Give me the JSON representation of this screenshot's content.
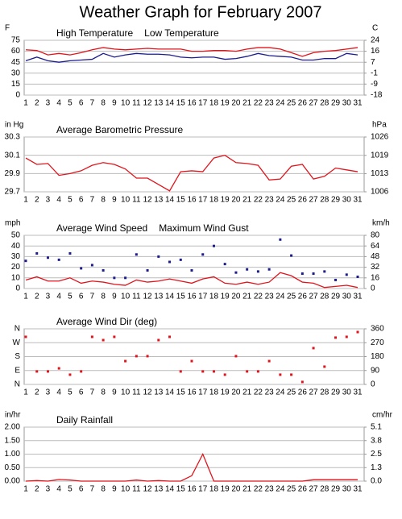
{
  "title": "Weather Graph for February 2007",
  "chart_data": [
    {
      "type": "line",
      "ylabel": "F",
      "y2label": "C",
      "x": [
        1,
        2,
        3,
        4,
        5,
        6,
        7,
        8,
        9,
        10,
        11,
        12,
        13,
        14,
        15,
        16,
        17,
        18,
        19,
        20,
        21,
        22,
        23,
        24,
        25,
        26,
        27,
        28,
        29,
        30,
        31
      ],
      "series": [
        {
          "name": "High Temperature",
          "color": "#e0141c",
          "mode": "line",
          "values": [
            62,
            61,
            55,
            57,
            55,
            58,
            62,
            65,
            63,
            62,
            63,
            64,
            63,
            63,
            63,
            60,
            60,
            61,
            61,
            60,
            63,
            65,
            65,
            63,
            58,
            53,
            58,
            60,
            61,
            63,
            65
          ]
        },
        {
          "name": "Low Temperature",
          "color": "#1c1c8c",
          "mode": "line",
          "values": [
            47,
            52,
            47,
            45,
            47,
            48,
            49,
            57,
            52,
            55,
            57,
            56,
            56,
            55,
            52,
            51,
            52,
            52,
            49,
            50,
            53,
            57,
            54,
            53,
            52,
            48,
            48,
            50,
            50,
            57,
            55
          ]
        }
      ],
      "ylim": [
        0,
        75
      ],
      "yticks": [
        0,
        15,
        30,
        45,
        60,
        75
      ],
      "y2lim": [
        -17.8,
        23.9
      ],
      "y2ticks": [
        {
          "value": -17.8,
          "label": "-18"
        },
        {
          "value": -9.4,
          "label": "-9"
        },
        {
          "value": -1.1,
          "label": "-1"
        },
        {
          "value": 7.2,
          "label": "7"
        },
        {
          "value": 15.6,
          "label": "16"
        },
        {
          "value": 23.9,
          "label": "24"
        }
      ],
      "grid": true
    },
    {
      "type": "line",
      "ylabel": "in Hg",
      "y2label": "hPa",
      "x": [
        1,
        2,
        3,
        4,
        5,
        6,
        7,
        8,
        9,
        10,
        11,
        12,
        13,
        14,
        15,
        16,
        17,
        18,
        19,
        20,
        21,
        22,
        23,
        24,
        25,
        26,
        27,
        28,
        29,
        30,
        31
      ],
      "series": [
        {
          "name": "Average Barometric Pressure",
          "color": "#e0141c",
          "mode": "line",
          "values": [
            30.07,
            30.0,
            30.01,
            29.88,
            29.9,
            29.93,
            29.99,
            30.02,
            30.0,
            29.95,
            29.85,
            29.85,
            29.78,
            29.71,
            29.92,
            29.93,
            29.92,
            30.07,
            30.1,
            30.02,
            30.01,
            29.99,
            29.83,
            29.84,
            29.98,
            30.0,
            29.84,
            29.87,
            29.96,
            29.94,
            29.92
          ]
        }
      ],
      "ylim": [
        29.7,
        30.3
      ],
      "yticks": [
        29.7,
        29.9,
        30.1,
        30.3
      ],
      "y2lim": [
        1005.8,
        1026.1
      ],
      "y2ticks": [
        {
          "value": 1005.8,
          "label": "1006"
        },
        {
          "value": 1012.5,
          "label": "1013"
        },
        {
          "value": 1019.3,
          "label": "1019"
        },
        {
          "value": 1026.1,
          "label": "1026"
        }
      ],
      "grid": true
    },
    {
      "type": "line",
      "ylabel": "mph",
      "y2label": "km/h",
      "x": [
        1,
        2,
        3,
        4,
        5,
        6,
        7,
        8,
        9,
        10,
        11,
        12,
        13,
        14,
        15,
        16,
        17,
        18,
        19,
        20,
        21,
        22,
        23,
        24,
        25,
        26,
        27,
        28,
        29,
        30,
        31
      ],
      "series": [
        {
          "name": "Average Wind Speed",
          "color": "#e0141c",
          "mode": "line",
          "values": [
            8,
            11,
            7,
            7,
            10,
            5,
            7,
            6,
            4,
            3,
            8,
            6,
            7,
            9,
            7,
            5,
            9,
            11,
            5,
            4,
            6,
            4,
            6,
            15,
            12,
            6,
            5,
            1,
            2,
            3,
            1
          ]
        },
        {
          "name": "Maximum Wind Gust",
          "color": "#1c1c8c",
          "mode": "markers",
          "values": [
            26,
            33,
            29,
            27,
            33,
            19,
            22,
            17,
            10,
            10,
            32,
            17,
            30,
            25,
            27,
            17,
            32,
            40,
            23,
            15,
            18,
            16,
            18,
            46,
            31,
            14,
            14,
            16,
            8,
            13,
            11
          ]
        }
      ],
      "ylim": [
        0,
        50
      ],
      "yticks": [
        0,
        10,
        20,
        30,
        40,
        50
      ],
      "y2lim": [
        0,
        80.5
      ],
      "y2ticks": [
        {
          "value": 0,
          "label": "0"
        },
        {
          "value": 16.1,
          "label": "16"
        },
        {
          "value": 32.2,
          "label": "32"
        },
        {
          "value": 48.3,
          "label": "48"
        },
        {
          "value": 64.4,
          "label": "64"
        },
        {
          "value": 80.5,
          "label": "80"
        }
      ],
      "grid": true
    },
    {
      "type": "scatter",
      "x": [
        1,
        2,
        3,
        4,
        5,
        6,
        7,
        8,
        9,
        10,
        11,
        12,
        13,
        14,
        15,
        16,
        17,
        18,
        19,
        20,
        21,
        22,
        23,
        24,
        25,
        26,
        27,
        28,
        29,
        30,
        31
      ],
      "series": [
        {
          "name": "Average Wind Dir (deg)",
          "color": "#e0141c",
          "mode": "markers",
          "values": [
            308,
            84,
            84,
            104,
            63,
            84,
            308,
            287,
            308,
            151,
            183,
            183,
            287,
            308,
            84,
            151,
            84,
            84,
            63,
            183,
            84,
            84,
            151,
            63,
            63,
            16,
            235,
            115,
            303,
            308,
            339
          ]
        }
      ],
      "ylim": [
        0,
        360
      ],
      "yticks": [
        {
          "value": 0,
          "label": "N"
        },
        {
          "value": 90,
          "label": "E"
        },
        {
          "value": 180,
          "label": "S"
        },
        {
          "value": 270,
          "label": "W"
        },
        {
          "value": 360,
          "label": "N"
        }
      ],
      "y2lim": [
        0,
        360
      ],
      "y2ticks": [
        0,
        90,
        180,
        270,
        360
      ],
      "grid": true
    },
    {
      "type": "line",
      "ylabel": "in/hr",
      "y2label": "cm/hr",
      "x": [
        1,
        2,
        3,
        4,
        5,
        6,
        7,
        8,
        9,
        10,
        11,
        12,
        13,
        14,
        15,
        16,
        17,
        18,
        19,
        20,
        21,
        22,
        23,
        24,
        25,
        26,
        27,
        28,
        29,
        30,
        31
      ],
      "series": [
        {
          "name": "Daily Rainfall",
          "color": "#e0141c",
          "mode": "line",
          "values": [
            0,
            0.02,
            0,
            0.06,
            0.04,
            0,
            0,
            0,
            0,
            0,
            0.04,
            0,
            0.02,
            0,
            0,
            0.2,
            1.0,
            0,
            0,
            0,
            0,
            0,
            0,
            0,
            0,
            0,
            0.05,
            0.05,
            0.05,
            0.05,
            0.05
          ]
        }
      ],
      "ylim": [
        0,
        2
      ],
      "yticks": [
        {
          "value": 0,
          "label": "0.00"
        },
        {
          "value": 0.5,
          "label": "0.50"
        },
        {
          "value": 1,
          "label": "1.00"
        },
        {
          "value": 1.5,
          "label": "1.50"
        },
        {
          "value": 2,
          "label": "2.00"
        }
      ],
      "y2lim": [
        0,
        5.08
      ],
      "y2ticks": [
        {
          "value": 0,
          "label": "0.0"
        },
        {
          "value": 1.27,
          "label": "1.3"
        },
        {
          "value": 2.54,
          "label": "2.5"
        },
        {
          "value": 3.81,
          "label": "3.8"
        },
        {
          "value": 5.08,
          "label": "5.1"
        }
      ],
      "grid": true
    }
  ]
}
